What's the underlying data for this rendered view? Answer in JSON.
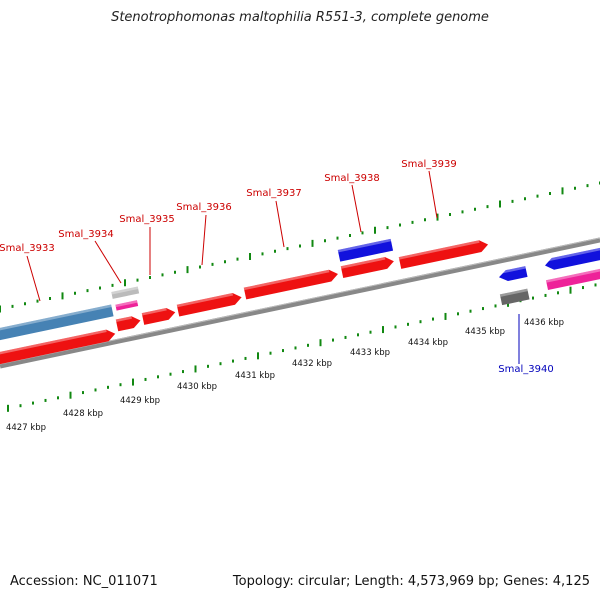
{
  "title": "Stenotrophomonas maltophilia R551-3, complete genome",
  "accession": "Accession: NC_011071",
  "stats": "Topology: circular; Length: 4,573,969 bp; Genes: 4,125",
  "colors": {
    "gene_red": "#ee1111",
    "gene_blue": "#1111dd",
    "label_red": "#cc0000",
    "label_blue": "#0000bb",
    "tick_green": "#118811",
    "backbone": "#888888",
    "steelblue": "#4682b4",
    "pink": "#ee2299",
    "grey_feature": "#666666"
  },
  "scale_labels": [
    "4427 kbp",
    "4428 kbp",
    "4429 kbp",
    "4430 kbp",
    "4431 kbp",
    "4432 kbp",
    "4433 kbp",
    "4434 kbp",
    "4435 kbp",
    "4436 kbp"
  ],
  "genes": [
    {
      "label": "Smal_3933",
      "color": "red"
    },
    {
      "label": "Smal_3934",
      "color": "red"
    },
    {
      "label": "Smal_3935",
      "color": "red"
    },
    {
      "label": "Smal_3936",
      "color": "red"
    },
    {
      "label": "Smal_3937",
      "color": "red"
    },
    {
      "label": "Smal_3938",
      "color": "red"
    },
    {
      "label": "Smal_3939",
      "color": "red"
    },
    {
      "label": "Smal_3940",
      "color": "blue"
    }
  ]
}
